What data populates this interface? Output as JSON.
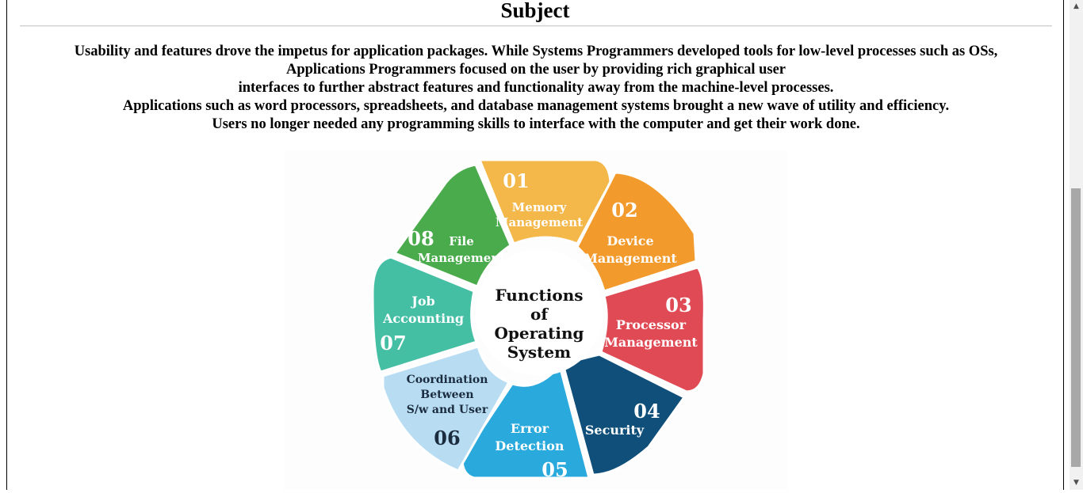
{
  "page": {
    "title": "Subject",
    "paragraph_lines": [
      "Usability and features drove the impetus for application packages. While Systems Programmers developed tools for low-level processes such as OSs,",
      "Applications Programmers focused on the user by providing rich graphical user",
      "interfaces to further abstract features and functionality away from the machine-level processes.",
      "Applications such as word processors, spreadsheets, and database management systems brought a new wave of utility and efficiency.",
      "Users no longer needed any programming skills to interface with the computer and get their work done."
    ]
  },
  "diagram": {
    "center_lines": [
      "Functions",
      "of",
      "Operating",
      "System"
    ],
    "segments": [
      {
        "number": "01",
        "lines": [
          "Memory",
          "Management"
        ],
        "color": "#f4b74a"
      },
      {
        "number": "02",
        "lines": [
          "Device",
          "Management"
        ],
        "color": "#f39a2c"
      },
      {
        "number": "03",
        "lines": [
          "Processor",
          "Management"
        ],
        "color": "#e04a55"
      },
      {
        "number": "04",
        "lines": [
          "Security"
        ],
        "color": "#0f4f7a"
      },
      {
        "number": "05",
        "lines": [
          "Error",
          "Detection"
        ],
        "color": "#2aa9dd"
      },
      {
        "number": "06",
        "lines": [
          "Coordination",
          "Between",
          "S/w and User"
        ],
        "color": "#b8dcf2"
      },
      {
        "number": "07",
        "lines": [
          "Job",
          "Accounting"
        ],
        "color": "#44bfa4"
      },
      {
        "number": "08",
        "lines": [
          "File",
          "Management"
        ],
        "color": "#4aab4c"
      }
    ]
  },
  "scrollbar": {
    "up_icon": "triangle-up",
    "down_icon": "triangle-down"
  }
}
